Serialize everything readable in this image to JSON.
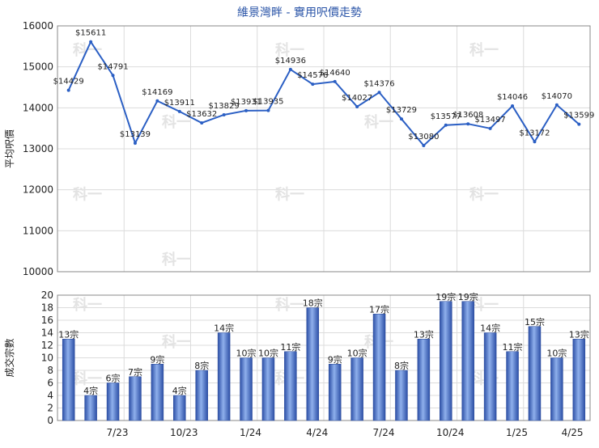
{
  "chart_data": [
    {
      "type": "line",
      "title": "維景灣畔 - 實用呎價走勢",
      "ylabel": "平均呎價",
      "ylim": [
        10000,
        16000
      ],
      "yticks": [
        10000,
        11000,
        12000,
        13000,
        14000,
        15000,
        16000
      ],
      "xtick_labels": [
        "7/23",
        "10/23",
        "1/24",
        "4/24",
        "7/24",
        "10/24",
        "1/25",
        "4/25"
      ],
      "color": "#2b5fc4",
      "values": [
        14429,
        15611,
        14791,
        13139,
        14169,
        13911,
        13632,
        13829,
        13931,
        13935,
        14936,
        14576,
        14640,
        14027,
        14376,
        13729,
        13080,
        13577,
        13608,
        13497,
        14046,
        13172,
        14070,
        13599
      ],
      "labels": [
        "$14429",
        "$15611",
        "$14791",
        "$13139",
        "$14169",
        "$13911",
        "$13632",
        "$13829",
        "$13931",
        "$13935",
        "$14936",
        "$14576",
        "$14640",
        "$14027",
        "$14376",
        "$13729",
        "$13080",
        "$13577",
        "$13608",
        "$13497",
        "$14046",
        "$13172",
        "$14070",
        "$13599"
      ],
      "grid": true
    },
    {
      "type": "bar",
      "ylabel": "成交宗數",
      "ylim": [
        0,
        20
      ],
      "yticks": [
        0,
        2,
        4,
        6,
        8,
        10,
        12,
        14,
        16,
        18,
        20
      ],
      "xtick_labels": [
        "7/23",
        "10/23",
        "1/24",
        "4/24",
        "7/24",
        "10/24",
        "1/25",
        "4/25"
      ],
      "color": "#3f6fd0",
      "values": [
        13,
        4,
        6,
        7,
        9,
        4,
        8,
        14,
        10,
        10,
        11,
        18,
        9,
        10,
        17,
        8,
        13,
        19,
        19,
        14,
        11,
        15,
        10,
        13
      ],
      "labels": [
        "13宗",
        "4宗",
        "6宗",
        "7宗",
        "9宗",
        "4宗",
        "8宗",
        "14宗",
        "10宗",
        "10宗",
        "11宗",
        "18宗",
        "9宗",
        "10宗",
        "17宗",
        "8宗",
        "13宗",
        "19宗",
        "19宗",
        "14宗",
        "11宗",
        "15宗",
        "10宗",
        "13宗"
      ],
      "grid": true
    }
  ],
  "watermark": "科一"
}
